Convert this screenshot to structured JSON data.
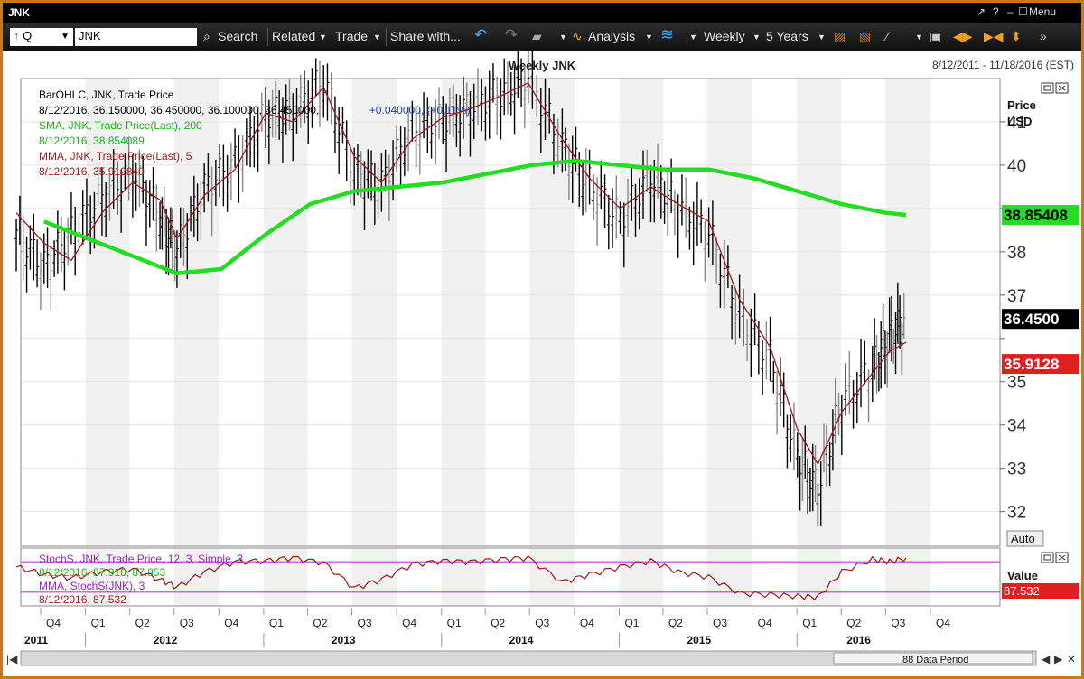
{
  "window": {
    "title": "JNK",
    "menu_label": "Menu",
    "controls": [
      "↗",
      "?",
      "–",
      "☐"
    ]
  },
  "toolbar": {
    "q_label": "Q",
    "symbol": "JNK",
    "items": [
      "Search",
      "Related",
      "Trade",
      "Share with...",
      "Analysis",
      "Weekly",
      "5 Years"
    ]
  },
  "chart": {
    "title": "Weekly JNK",
    "date_range": "8/12/2011 - 11/18/2016 (EST)",
    "axis_title": "Price",
    "axis_unit": "USD",
    "price_tag_current": "36.4500",
    "price_tag_sma": "38.85408",
    "price_tag_mma": "35.9128",
    "legend": [
      {
        "text": "BarOHLC, JNK, Trade Price",
        "color": "#000000"
      },
      {
        "text": "8/12/2016, 36.150000, 36.450000, 36.100000, 36.450000,",
        "color": "#000000"
      },
      {
        "text": "+0.040000, (+0.11%)",
        "color": "#1f3fb5"
      },
      {
        "text": "SMA, JNK, Trade Price(Last), 200",
        "color": "#19b319"
      },
      {
        "text": "8/12/2016, 38.854089",
        "color": "#19b319"
      },
      {
        "text": "MMA, JNK, Trade Price(Last), 5",
        "color": "#9b1a1a"
      },
      {
        "text": "8/12/2016, 35.912840",
        "color": "#9b1a1a"
      }
    ],
    "auto_button": "Auto",
    "colors": {
      "bars": "#000000",
      "sma": "#22dd22",
      "mma": "#a01818",
      "stoch": "#a01818",
      "stoch_line": "#b040d0",
      "price_tag_current": "#000000",
      "price_tag_sma": "#22dd22",
      "price_tag_mma": "#e02020"
    }
  },
  "stoch": {
    "legend": [
      {
        "text": "StochS, JNK, Trade Price, 12, 3, Simple, 3",
        "color": "#a020c0"
      },
      {
        "text": "8/12/2016, 87.910, 87.853",
        "color": "#19b319"
      },
      {
        "text": "MMA, StochS(JNK), 3",
        "color": "#a020c0"
      },
      {
        "text": "8/12/2016, 87.532",
        "color": "#9b1a1a"
      }
    ],
    "axis_title": "Value",
    "value_tag": "87.532"
  },
  "xaxis": {
    "quarters": [
      "Q4",
      "Q1",
      "Q2",
      "Q3",
      "Q4",
      "Q1",
      "Q2",
      "Q3",
      "Q4",
      "Q1",
      "Q2",
      "Q3",
      "Q4",
      "Q1",
      "Q2",
      "Q3",
      "Q4",
      "Q1",
      "Q2",
      "Q3",
      "Q4"
    ],
    "years": [
      "2011",
      "2012",
      "2013",
      "2014",
      "2015",
      "2016"
    ],
    "data_period": "88 Data Period"
  },
  "chart_data": {
    "type": "line",
    "title": "Weekly JNK",
    "ylabel": "Price USD",
    "ylim": [
      31.2,
      42.0
    ],
    "xlim": [
      "2011-10-01",
      "2016-12-31"
    ],
    "yticks": [
      32,
      33,
      34,
      35,
      36,
      37,
      38,
      39,
      40,
      41
    ],
    "ytick_labels": [
      "32",
      "33",
      "34",
      "35",
      "",
      "37",
      "38",
      "",
      "40",
      "41"
    ],
    "grid": true,
    "series": [
      {
        "name": "SMA, JNK, Trade Price(Last), 200",
        "x": [
          "2011-10-08",
          "2012-01-07",
          "2012-04-07",
          "2012-07-07",
          "2012-10-06",
          "2013-01-05",
          "2013-04-06",
          "2013-07-06",
          "2013-10-05",
          "2014-01-04",
          "2014-04-05",
          "2014-07-05",
          "2014-10-04",
          "2015-01-03",
          "2015-04-04",
          "2015-07-04",
          "2015-10-03",
          "2016-01-02",
          "2016-04-02",
          "2016-07-02",
          "2016-08-12"
        ],
        "values": [
          38.7,
          38.3,
          37.9,
          37.5,
          37.6,
          38.4,
          39.1,
          39.4,
          39.5,
          39.6,
          39.8,
          40.0,
          40.1,
          40.0,
          39.9,
          39.9,
          39.7,
          39.4,
          39.1,
          38.9,
          38.85
        ]
      },
      {
        "name": "MMA, JNK, Trade Price(Last), 5",
        "x": [
          "2011-08-12",
          "2011-10-08",
          "2011-12-03",
          "2012-02-04",
          "2012-04-07",
          "2012-06-02",
          "2012-07-07",
          "2012-09-01",
          "2012-11-03",
          "2013-01-05",
          "2013-03-02",
          "2013-05-04",
          "2013-07-06",
          "2013-08-31",
          "2013-11-02",
          "2014-01-04",
          "2014-03-01",
          "2014-05-03",
          "2014-06-28",
          "2014-09-06",
          "2014-11-01",
          "2015-01-03",
          "2015-03-07",
          "2015-05-02",
          "2015-07-04",
          "2015-09-05",
          "2015-11-07",
          "2016-01-02",
          "2016-02-13",
          "2016-04-02",
          "2016-06-04",
          "2016-07-09",
          "2016-08-12"
        ],
        "values": [
          38.9,
          38.2,
          37.8,
          38.9,
          39.6,
          39.2,
          38.3,
          39.3,
          39.9,
          41.2,
          41.0,
          41.8,
          40.2,
          39.6,
          40.6,
          41.1,
          41.3,
          41.6,
          41.9,
          40.6,
          39.7,
          39.0,
          39.5,
          39.1,
          38.7,
          36.9,
          35.8,
          33.9,
          33.1,
          34.3,
          35.2,
          35.7,
          35.91
        ]
      },
      {
        "name": "BarOHLC, JNK, Trade Price",
        "x": [
          "2011-08-12",
          "2011-10-08",
          "2011-12-03",
          "2012-02-04",
          "2012-04-07",
          "2012-06-02",
          "2012-07-07",
          "2012-09-01",
          "2012-11-03",
          "2013-01-05",
          "2013-03-02",
          "2013-05-04",
          "2013-07-06",
          "2013-08-31",
          "2013-11-02",
          "2014-01-04",
          "2014-03-01",
          "2014-05-03",
          "2014-06-28",
          "2014-09-06",
          "2014-11-01",
          "2015-01-03",
          "2015-03-07",
          "2015-05-02",
          "2015-07-04",
          "2015-09-05",
          "2015-11-07",
          "2016-01-02",
          "2016-02-13",
          "2016-04-02",
          "2016-06-04",
          "2016-07-09",
          "2016-08-12"
        ],
        "values": [
          38.4,
          37.6,
          38.4,
          39.2,
          39.8,
          38.8,
          38.0,
          39.4,
          40.0,
          41.1,
          41.2,
          41.9,
          39.8,
          39.5,
          40.8,
          41.0,
          41.3,
          41.6,
          42.0,
          40.4,
          39.5,
          38.7,
          39.7,
          39.0,
          38.4,
          36.5,
          35.5,
          33.2,
          32.5,
          34.5,
          35.3,
          36.0,
          36.45
        ]
      }
    ]
  },
  "stoch_data": {
    "type": "line",
    "ylim": [
      0,
      100
    ],
    "x": [
      "2011-08-12",
      "2011-10-08",
      "2011-12-03",
      "2012-02-04",
      "2012-04-07",
      "2012-06-02",
      "2012-07-07",
      "2012-09-01",
      "2012-11-03",
      "2013-01-05",
      "2013-03-02",
      "2013-05-04",
      "2013-07-06",
      "2013-08-31",
      "2013-11-02",
      "2014-01-04",
      "2014-03-01",
      "2014-05-03",
      "2014-06-28",
      "2014-09-06",
      "2014-11-01",
      "2015-01-03",
      "2015-03-07",
      "2015-05-02",
      "2015-07-04",
      "2015-09-05",
      "2015-11-07",
      "2016-01-02",
      "2016-02-13",
      "2016-04-02",
      "2016-06-04",
      "2016-07-09",
      "2016-08-12"
    ],
    "values": [
      70,
      55,
      48,
      60,
      66,
      45,
      30,
      60,
      80,
      82,
      88,
      78,
      28,
      45,
      75,
      82,
      80,
      85,
      88,
      40,
      55,
      70,
      82,
      60,
      50,
      18,
      15,
      12,
      10,
      60,
      85,
      80,
      87.53
    ],
    "reference_lines": [
      80,
      20
    ]
  }
}
